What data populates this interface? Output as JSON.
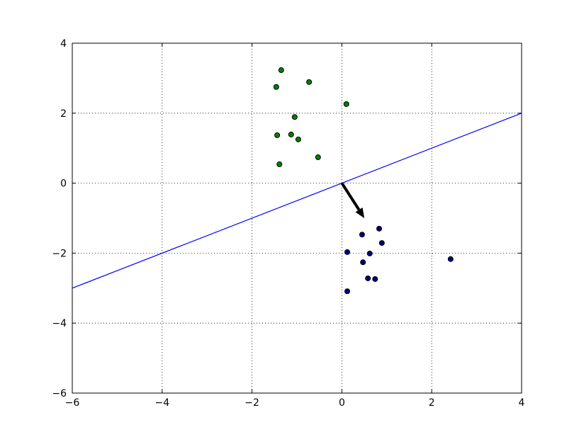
{
  "chart_data": {
    "type": "scatter",
    "xlim": [
      -6,
      4
    ],
    "ylim": [
      -6,
      4
    ],
    "xticks": [
      {
        "value": -6,
        "label": "−6"
      },
      {
        "value": -4,
        "label": "−4"
      },
      {
        "value": -2,
        "label": "−2"
      },
      0,
      2,
      4
    ],
    "yticks": [
      {
        "value": -6,
        "label": "−6"
      },
      {
        "value": -4,
        "label": "−4"
      },
      {
        "value": -2,
        "label": "−2"
      },
      0,
      2,
      4
    ],
    "grid": true,
    "series": [
      {
        "color": "#008000",
        "x": [
          -1.35,
          -1.46,
          -0.73,
          0.1,
          -1.05,
          -1.44,
          -1.13,
          -0.97,
          -0.53,
          -1.39
        ],
        "values": [
          3.23,
          2.75,
          2.89,
          2.26,
          1.89,
          1.37,
          1.39,
          1.25,
          0.74,
          0.54
        ]
      },
      {
        "color": "#000080",
        "x": [
          0.45,
          0.83,
          0.89,
          0.12,
          0.62,
          0.47,
          2.42,
          0.58,
          0.74,
          0.12
        ],
        "values": [
          -1.47,
          -1.3,
          -1.71,
          -1.97,
          -2.01,
          -2.26,
          -2.17,
          -2.72,
          -2.74,
          -3.09
        ]
      }
    ],
    "line": {
      "color": "#0000ff",
      "x": [
        -6,
        4
      ],
      "values": [
        -3,
        2
      ]
    },
    "arrow": {
      "color": "#000000",
      "x": [
        0,
        0.5
      ],
      "values": [
        0,
        -1
      ]
    }
  }
}
